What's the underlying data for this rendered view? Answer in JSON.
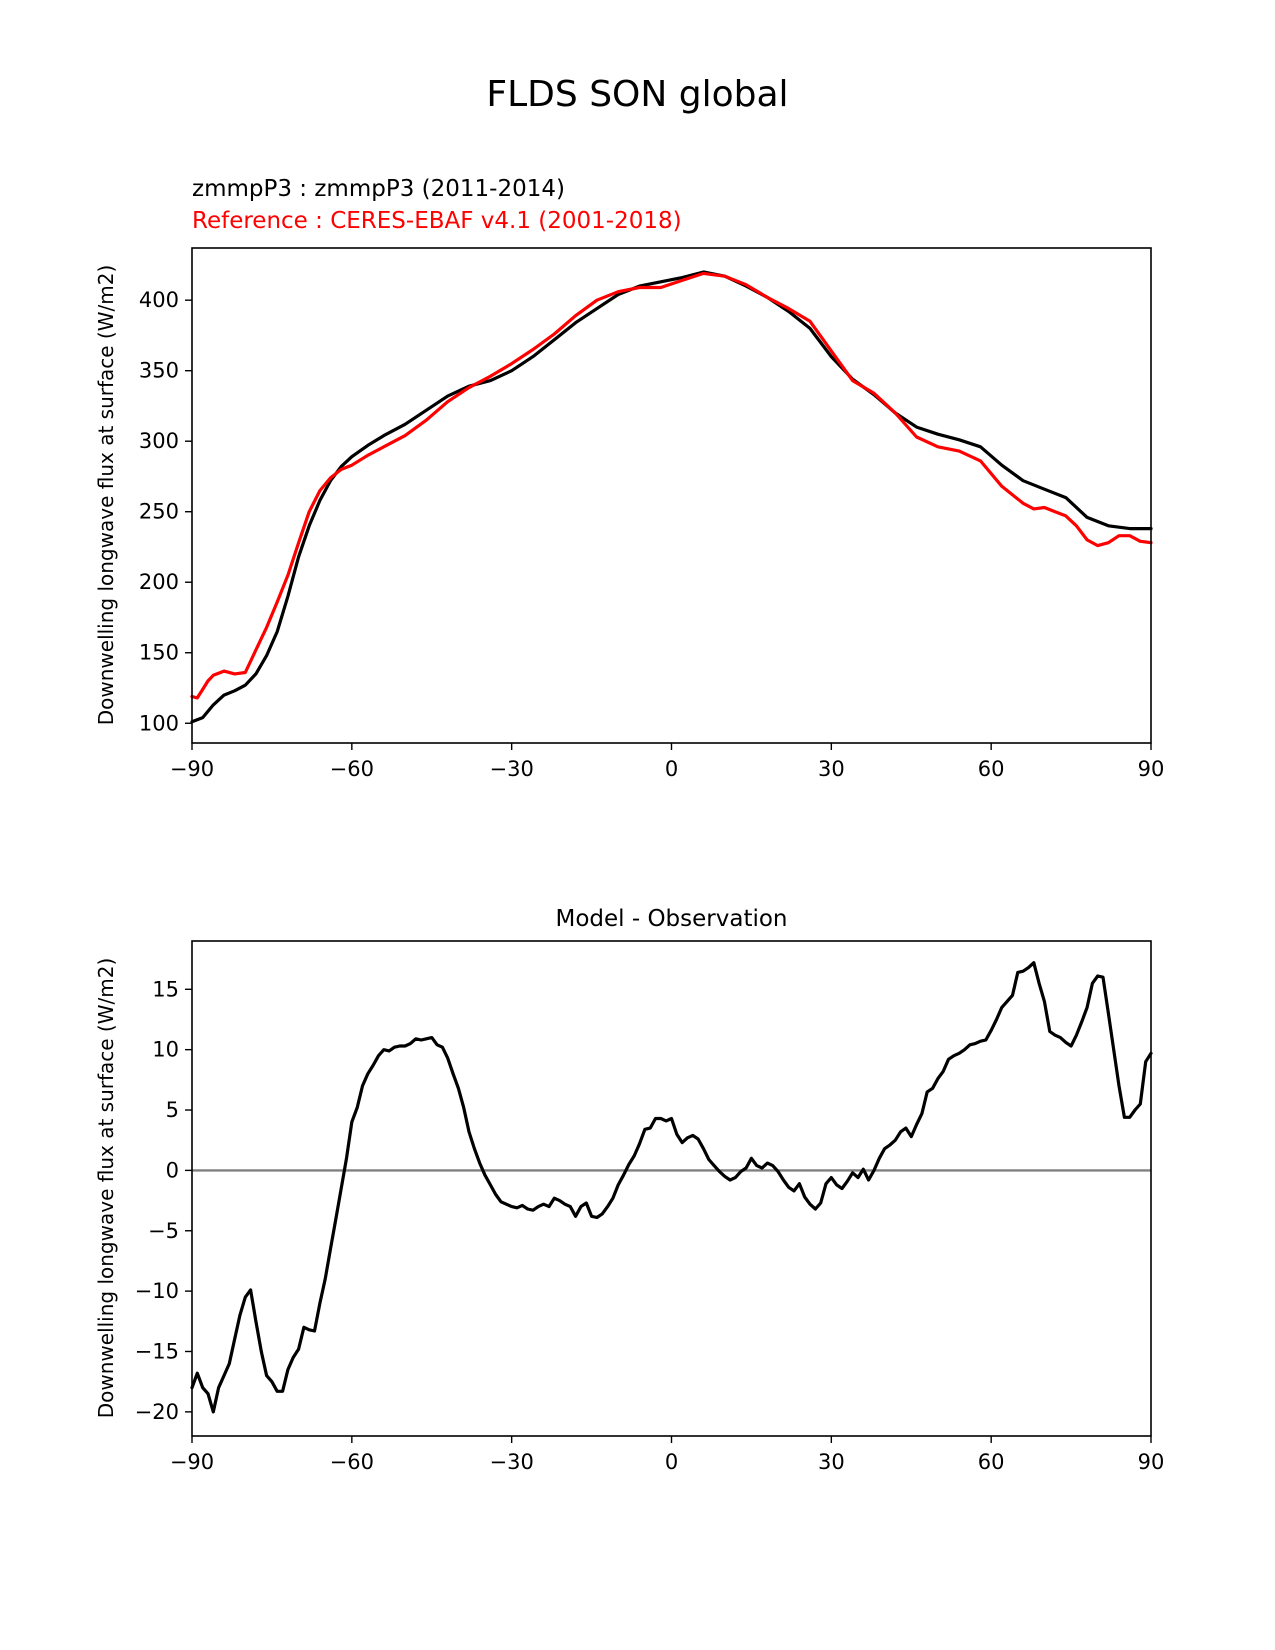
{
  "figure": {
    "title": "FLDS SON global"
  },
  "charts": [
    {
      "subtitle_test": "zmmpP3 : zmmpP3 (2011-2014)",
      "subtitle_ref": "Reference : CERES-EBAF v4.1 (2001-2018)",
      "ylabel": "Downwelling longwave flux at surface (W/m2)",
      "xticks": [
        "−90",
        "−60",
        "−30",
        "0",
        "30",
        "60",
        "90"
      ],
      "yticks": [
        "100",
        "150",
        "200",
        "250",
        "300",
        "350",
        "400"
      ]
    },
    {
      "title": "Model - Observation",
      "ylabel": "Downwelling longwave flux at surface (W/m2)",
      "xticks": [
        "−90",
        "−60",
        "−30",
        "0",
        "30",
        "60",
        "90"
      ],
      "yticks": [
        "−20",
        "−15",
        "−10",
        "−5",
        "0",
        "5",
        "10",
        "15"
      ]
    }
  ],
  "chart_data": [
    {
      "type": "line",
      "xlim": [
        -90,
        90
      ],
      "ylim": [
        86,
        437
      ],
      "xtick_values": [
        -90,
        -60,
        -30,
        0,
        30,
        60,
        90
      ],
      "ytick_values": [
        100,
        150,
        200,
        250,
        300,
        350,
        400
      ],
      "colors": {
        "test": "#000000",
        "ref": "#ff0000"
      },
      "series": [
        {
          "key": "test",
          "x": [
            -90,
            -88,
            -86,
            -84,
            -82,
            -80,
            -78,
            -76,
            -74,
            -72,
            -70,
            -68,
            -66,
            -64,
            -62,
            -60,
            -57,
            -54,
            -50,
            -46,
            -42,
            -38,
            -34,
            -30,
            -26,
            -22,
            -18,
            -14,
            -10,
            -6,
            -2,
            2,
            6,
            10,
            14,
            18,
            22,
            26,
            30,
            34,
            38,
            42,
            46,
            50,
            54,
            58,
            62,
            66,
            70,
            74,
            78,
            82,
            86,
            90
          ],
          "y": [
            101,
            104,
            113,
            120,
            123,
            127,
            135,
            148,
            165,
            190,
            218,
            240,
            258,
            272,
            282,
            289,
            297,
            304,
            312,
            322,
            332,
            339,
            343,
            350,
            360,
            372,
            384,
            394,
            404,
            410,
            413,
            416,
            420,
            417,
            410,
            402,
            392,
            380,
            360,
            344,
            333,
            320,
            310,
            305,
            301,
            296,
            283,
            272,
            266,
            260,
            246,
            240,
            238,
            238
          ]
        },
        {
          "key": "ref",
          "x": [
            -90,
            -89,
            -88,
            -87,
            -86,
            -84,
            -82,
            -80,
            -78,
            -76,
            -74,
            -72,
            -70,
            -68,
            -66,
            -64,
            -62,
            -60,
            -57,
            -54,
            -50,
            -46,
            -42,
            -38,
            -34,
            -30,
            -26,
            -22,
            -18,
            -14,
            -10,
            -6,
            -2,
            2,
            6,
            10,
            14,
            18,
            22,
            26,
            30,
            34,
            38,
            42,
            46,
            50,
            54,
            58,
            62,
            66,
            68,
            70,
            72,
            74,
            76,
            78,
            80,
            82,
            84,
            86,
            88,
            90
          ],
          "y": [
            119,
            118,
            124,
            130,
            134,
            137,
            135,
            136,
            152,
            168,
            186,
            205,
            228,
            250,
            265,
            274,
            280,
            283,
            290,
            296,
            304,
            315,
            328,
            338,
            346,
            355,
            365,
            376,
            389,
            400,
            406,
            409,
            409,
            414,
            419,
            417,
            411,
            402,
            394,
            385,
            364,
            343,
            334,
            320,
            303,
            296,
            293,
            286,
            268,
            256,
            252,
            253,
            250,
            247,
            240,
            230,
            226,
            228,
            233,
            233,
            229,
            228
          ]
        }
      ]
    },
    {
      "type": "line",
      "xlim": [
        -90,
        90
      ],
      "ylim": [
        -22,
        19
      ],
      "xtick_values": [
        -90,
        -60,
        -30,
        0,
        30,
        60,
        90
      ],
      "ytick_values": [
        -20,
        -15,
        -10,
        -5,
        0,
        5,
        10,
        15
      ],
      "zero_line": 0,
      "colors": {
        "diff": "#000000",
        "zero": "#808080"
      },
      "series": [
        {
          "key": "diff",
          "x": [
            -90,
            -89,
            -88,
            -87,
            -86,
            -85,
            -84,
            -83,
            -82,
            -81,
            -80,
            -79,
            -78,
            -77,
            -76,
            -75,
            -74,
            -73,
            -72,
            -71,
            -70,
            -69,
            -68,
            -67,
            -66,
            -65,
            -64,
            -63,
            -62,
            -61,
            -60,
            -59,
            -58,
            -57,
            -56,
            -55,
            -54,
            -53,
            -52,
            -51,
            -50,
            -49,
            -48,
            -47,
            -46,
            -45,
            -44,
            -43,
            -42,
            -41,
            -40,
            -39,
            -38,
            -37,
            -36,
            -35,
            -34,
            -33,
            -32,
            -31,
            -30,
            -29,
            -28,
            -27,
            -26,
            -25,
            -24,
            -23,
            -22,
            -21,
            -20,
            -19,
            -18,
            -17,
            -16,
            -15,
            -14,
            -13,
            -12,
            -11,
            -10,
            -9,
            -8,
            -7,
            -6,
            -5,
            -4,
            -3,
            -2,
            -1,
            0,
            1,
            2,
            3,
            4,
            5,
            6,
            7,
            8,
            9,
            10,
            11,
            12,
            13,
            14,
            15,
            16,
            17,
            18,
            19,
            20,
            21,
            22,
            23,
            24,
            25,
            26,
            27,
            28,
            29,
            30,
            31,
            32,
            33,
            34,
            35,
            36,
            37,
            38,
            39,
            40,
            41,
            42,
            43,
            44,
            45,
            46,
            47,
            48,
            49,
            50,
            51,
            52,
            53,
            54,
            55,
            56,
            57,
            58,
            59,
            60,
            61,
            62,
            63,
            64,
            65,
            66,
            67,
            68,
            69,
            70,
            71,
            72,
            73,
            74,
            75,
            76,
            77,
            78,
            79,
            80,
            81,
            82,
            83,
            84,
            85,
            86,
            87,
            88,
            89,
            90
          ],
          "y": [
            -18.0,
            -16.8,
            -18.0,
            -18.5,
            -20.0,
            -18.0,
            -17.0,
            -16.0,
            -14.0,
            -12.0,
            -10.5,
            -9.9,
            -12.5,
            -15.0,
            -17.0,
            -17.5,
            -18.3,
            -18.3,
            -16.5,
            -15.5,
            -14.8,
            -13.0,
            -13.2,
            -13.3,
            -11.0,
            -9.0,
            -6.5,
            -4.0,
            -1.5,
            1.0,
            4.0,
            5.2,
            7.0,
            8.0,
            8.7,
            9.5,
            10.0,
            9.9,
            10.2,
            10.3,
            10.3,
            10.5,
            10.9,
            10.8,
            10.9,
            11.0,
            10.4,
            10.2,
            9.3,
            8.0,
            6.8,
            5.2,
            3.2,
            1.8,
            0.6,
            -0.4,
            -1.2,
            -2.0,
            -2.6,
            -2.8,
            -3.0,
            -3.1,
            -2.9,
            -3.2,
            -3.3,
            -3.0,
            -2.8,
            -3.0,
            -2.3,
            -2.5,
            -2.8,
            -3.0,
            -3.8,
            -3.0,
            -2.7,
            -3.8,
            -3.9,
            -3.6,
            -3.0,
            -2.3,
            -1.2,
            -0.4,
            0.5,
            1.2,
            2.2,
            3.4,
            3.5,
            4.3,
            4.3,
            4.1,
            4.3,
            3.0,
            2.3,
            2.7,
            2.9,
            2.6,
            1.8,
            0.9,
            0.4,
            -0.1,
            -0.5,
            -0.8,
            -0.6,
            -0.1,
            0.2,
            1.0,
            0.4,
            0.2,
            0.6,
            0.4,
            -0.1,
            -0.8,
            -1.4,
            -1.7,
            -1.1,
            -2.2,
            -2.8,
            -3.2,
            -2.7,
            -1.1,
            -0.6,
            -1.2,
            -1.5,
            -0.9,
            -0.2,
            -0.6,
            0.1,
            -0.8,
            0.0,
            1.0,
            1.8,
            2.1,
            2.5,
            3.2,
            3.5,
            2.8,
            3.8,
            4.7,
            6.5,
            6.8,
            7.6,
            8.2,
            9.2,
            9.5,
            9.7,
            10.0,
            10.4,
            10.5,
            10.7,
            10.8,
            11.6,
            12.5,
            13.5,
            14.0,
            14.5,
            16.4,
            16.5,
            16.8,
            17.2,
            15.5,
            14.0,
            11.5,
            11.2,
            11.0,
            10.6,
            10.3,
            11.2,
            12.3,
            13.5,
            15.5,
            16.1,
            16.0,
            13.0,
            10.0,
            7.0,
            4.4,
            4.4,
            5.0,
            5.5,
            9.0,
            9.7
          ]
        }
      ]
    }
  ]
}
